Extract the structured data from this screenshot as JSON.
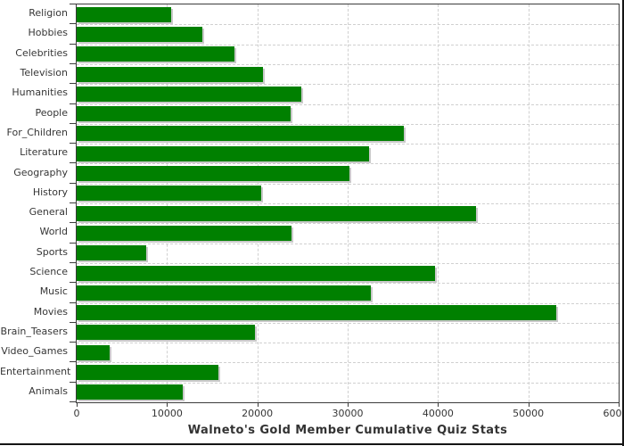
{
  "chart_data": {
    "type": "bar",
    "orientation": "horizontal",
    "title": "Walneto's Gold Member Cumulative Quiz Stats",
    "categories": [
      "Religion",
      "Hobbies",
      "Celebrities",
      "Television",
      "Humanities",
      "People",
      "For_Children",
      "Literature",
      "Geography",
      "History",
      "General",
      "World",
      "Sports",
      "Science",
      "Music",
      "Movies",
      "Brain_Teasers",
      "Video_Games",
      "Entertainment",
      "Animals"
    ],
    "values": [
      10500,
      13900,
      17500,
      20600,
      24900,
      23700,
      36200,
      32400,
      30200,
      20400,
      44200,
      23800,
      7700,
      39700,
      32600,
      53100,
      19700,
      3600,
      15700,
      11700
    ],
    "xlabel": "",
    "ylabel": "",
    "xlim": [
      0,
      60000
    ],
    "x_ticks": [
      0,
      10000,
      20000,
      30000,
      40000,
      50000,
      60000
    ],
    "x_tick_labels": [
      "0",
      "10000",
      "20000",
      "30000",
      "40000",
      "50000",
      "60000"
    ],
    "grid": "dashed",
    "legend": "none",
    "colors": {
      "bar": "#008000",
      "bar_shadow": "#c9c9c9",
      "gridline": "#d0d0d0",
      "axis": "#3c3c3c",
      "text": "#363636",
      "background": "#ffffff"
    }
  }
}
